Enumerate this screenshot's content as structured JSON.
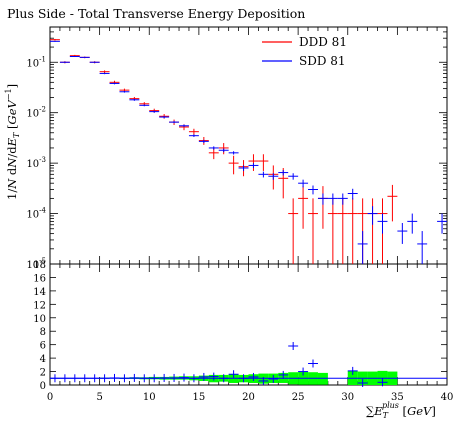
{
  "chart_data": [
    {
      "type": "line",
      "title": "Plus Side - Total Transverse Energy Deposition",
      "ylabel": "1/N dN/dE_T [GeV^-1]",
      "y_scale": "log",
      "ylim": [
        1e-05,
        0.5
      ],
      "xlim": [
        0,
        40
      ],
      "y_ticks": [
        {
          "v": 1e-05,
          "base": "10",
          "exp": "-5"
        },
        {
          "v": 0.0001,
          "base": "10",
          "exp": "-4"
        },
        {
          "v": 0.001,
          "base": "10",
          "exp": "-3"
        },
        {
          "v": 0.01,
          "base": "10",
          "exp": "-2"
        },
        {
          "v": 0.1,
          "base": "10",
          "exp": "-1"
        }
      ],
      "legend_position": "top-right",
      "series": [
        {
          "name": "DDD 81",
          "color": "#ff0000",
          "x": [
            0.5,
            1.5,
            2.5,
            3.5,
            4.5,
            5.5,
            6.5,
            7.5,
            8.5,
            9.5,
            10.5,
            11.5,
            12.5,
            13.5,
            14.5,
            15.5,
            16.5,
            17.5,
            18.5,
            19.5,
            20.5,
            21.5,
            22.5,
            23.5,
            24.5,
            25.5,
            26.5,
            27.5,
            28.5,
            29.5,
            30.5,
            31.5,
            32.5,
            33.5,
            34.5
          ],
          "values": [
            0.28,
            0.1,
            0.135,
            0.125,
            0.1,
            0.065,
            0.04,
            0.028,
            0.019,
            0.015,
            0.011,
            0.0085,
            0.0065,
            0.0052,
            0.0042,
            0.0028,
            0.0016,
            0.002,
            0.001,
            0.00085,
            0.0011,
            0.0011,
            0.0006,
            0.0005,
            0.0001,
            0.0002,
            0.0001,
            0.0002,
            0.0001,
            0.0001,
            0.0001,
            0.0001,
            0.0001,
            0.0001,
            0.00022
          ],
          "errors": [
            0.01,
            0.005,
            0.005,
            0.005,
            0.005,
            0.004,
            0.003,
            0.002,
            0.0015,
            0.0012,
            0.001,
            0.0009,
            0.0008,
            0.0007,
            0.0006,
            0.0005,
            0.0004,
            0.0005,
            0.0004,
            0.0003,
            0.0004,
            0.0004,
            0.0003,
            0.0003,
            0.0001,
            0.00015,
            0.0001,
            0.00015,
            0.0001,
            0.0001,
            0.0001,
            0.0001,
            0.0001,
            0.0001,
            0.00015
          ]
        },
        {
          "name": "SDD 81",
          "color": "#0000ff",
          "x": [
            0.5,
            1.5,
            2.5,
            3.5,
            4.5,
            5.5,
            6.5,
            7.5,
            8.5,
            9.5,
            10.5,
            11.5,
            12.5,
            13.5,
            14.5,
            15.5,
            16.5,
            17.5,
            18.5,
            19.5,
            20.5,
            21.5,
            22.5,
            23.5,
            24.5,
            25.5,
            26.5,
            27.5,
            28.5,
            29.5,
            30.5,
            31.5,
            32.5,
            33.5,
            35.5,
            36.5,
            37.5,
            39.5
          ],
          "values": [
            0.26,
            0.1,
            0.13,
            0.125,
            0.1,
            0.06,
            0.038,
            0.026,
            0.018,
            0.014,
            0.0105,
            0.0082,
            0.0065,
            0.0055,
            0.0035,
            0.0027,
            0.002,
            0.0018,
            0.0016,
            0.0008,
            0.0009,
            0.0006,
            0.00055,
            0.00065,
            0.00055,
            0.0004,
            0.0003,
            0.0002,
            0.0002,
            0.0002,
            0.00025,
            2.5e-05,
            0.0001,
            7e-05,
            4.5e-05,
            7e-05,
            2.5e-05,
            7e-05
          ],
          "errors": [
            0.005,
            0.003,
            0.003,
            0.003,
            0.003,
            0.002,
            0.0015,
            0.001,
            0.0008,
            0.0006,
            0.0005,
            0.0004,
            0.0003,
            0.0003,
            0.0002,
            0.0002,
            0.00015,
            0.00015,
            0.00012,
            0.0001,
            0.0001,
            8e-05,
            8e-05,
            8e-05,
            8e-05,
            7e-05,
            6e-05,
            5e-05,
            5e-05,
            5e-05,
            6e-05,
            2e-05,
            4e-05,
            3e-05,
            2e-05,
            3e-05,
            2e-05,
            3e-05
          ]
        }
      ]
    },
    {
      "type": "line",
      "title": "",
      "xlabel": "∑E_T^plus [GeV]",
      "xlim": [
        0,
        40
      ],
      "ylim": [
        0,
        18
      ],
      "x_ticks": [
        0,
        5,
        10,
        15,
        20,
        25,
        30,
        35,
        40
      ],
      "y_ticks": [
        0,
        2,
        4,
        6,
        8,
        10,
        12,
        14,
        16,
        18
      ],
      "band_color": "#00ff00",
      "reference_line_color": "#0000ff",
      "band": {
        "x": [
          0,
          1,
          2,
          3,
          4,
          5,
          6,
          7,
          8,
          9,
          10,
          11,
          12,
          13,
          14,
          15,
          16,
          17,
          18,
          19,
          20,
          21,
          22,
          23,
          24,
          25,
          26,
          27,
          28,
          30,
          31,
          32,
          33,
          34,
          35
        ],
        "lo": [
          0.95,
          0.95,
          0.95,
          0.95,
          0.95,
          0.95,
          0.95,
          0.9,
          0.9,
          0.85,
          0.85,
          0.8,
          0.8,
          0.8,
          0.7,
          0.6,
          0.4,
          0.5,
          0.3,
          0.4,
          0.3,
          0.2,
          0.3,
          0.3,
          0.1,
          0.05,
          0.05,
          0.05,
          0,
          0,
          0,
          0,
          0,
          0,
          0
        ],
        "hi": [
          1.05,
          1.05,
          1.05,
          1.05,
          1.05,
          1.1,
          1.1,
          1.1,
          1.15,
          1.15,
          1.2,
          1.2,
          1.25,
          1.3,
          1.3,
          1.4,
          1.5,
          1.5,
          1.6,
          1.5,
          1.6,
          1.7,
          1.7,
          1.8,
          1.9,
          2.0,
          1.9,
          1.8,
          0,
          2.1,
          2.0,
          2.0,
          2.1,
          2.0,
          0
        ]
      },
      "ratio_points": {
        "x": [
          0.5,
          1.5,
          2.5,
          3.5,
          4.5,
          5.5,
          6.5,
          7.5,
          8.5,
          9.5,
          10.5,
          11.5,
          12.5,
          13.5,
          14.5,
          15.5,
          16.5,
          17.5,
          18.5,
          19.5,
          20.5,
          21.5,
          22.5,
          23.5,
          24.5,
          25.5,
          26.5,
          30.5,
          31.5,
          33.5
        ],
        "values": [
          1.0,
          1.0,
          1.0,
          1.0,
          1.0,
          1.0,
          1.05,
          1.0,
          1.05,
          1.0,
          1.0,
          1.05,
          1.05,
          1.1,
          1.0,
          1.2,
          1.25,
          1.0,
          1.6,
          1.0,
          1.2,
          0.6,
          0.9,
          1.5,
          5.8,
          2.0,
          3.2,
          2.1,
          0.3,
          0.4
        ]
      }
    }
  ]
}
